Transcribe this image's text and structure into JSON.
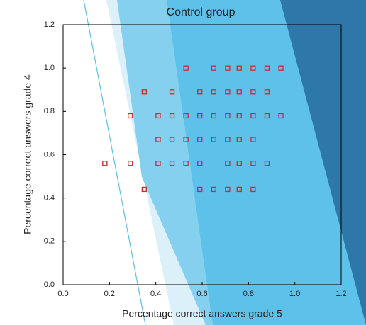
{
  "chart_data": {
    "type": "scatter",
    "title": "Control group",
    "x_label": "Percentage correct answers grade 5",
    "y_label": "Percentage correct answers grade 4",
    "xlim": [
      0,
      1.2
    ],
    "ylim": [
      0,
      1.2
    ],
    "xticks": [
      {
        "value": 0,
        "label": "0.0"
      },
      0.2,
      0.4,
      0.6,
      0.8,
      {
        "value": 1,
        "label": "1.0"
      },
      1.2
    ],
    "yticks": [
      {
        "value": 0,
        "label": "0.0"
      },
      0.2,
      0.4,
      0.6,
      0.8,
      {
        "value": 1,
        "label": "1.0"
      },
      1.2
    ],
    "color": "#e0202a",
    "x": [
      0.53,
      0.65,
      0.71,
      0.76,
      0.82,
      0.88,
      0.94,
      0.35,
      0.47,
      0.59,
      0.65,
      0.71,
      0.76,
      0.82,
      0.88,
      0.29,
      0.41,
      0.47,
      0.53,
      0.59,
      0.65,
      0.71,
      0.76,
      0.82,
      0.88,
      0.94,
      0.41,
      0.47,
      0.53,
      0.59,
      0.65,
      0.71,
      0.76,
      0.82,
      0.18,
      0.29,
      0.41,
      0.47,
      0.53,
      0.59,
      0.71,
      0.76,
      0.82,
      0.88,
      0.35,
      0.59,
      0.65,
      0.71,
      0.76,
      0.82
    ],
    "values": [
      1.0,
      1.0,
      1.0,
      1.0,
      1.0,
      1.0,
      1.0,
      0.89,
      0.89,
      0.89,
      0.89,
      0.89,
      0.89,
      0.89,
      0.89,
      0.78,
      0.78,
      0.78,
      0.78,
      0.78,
      0.78,
      0.78,
      0.78,
      0.78,
      0.78,
      0.78,
      0.67,
      0.67,
      0.67,
      0.67,
      0.67,
      0.67,
      0.67,
      0.67,
      0.56,
      0.56,
      0.56,
      0.56,
      0.56,
      0.56,
      0.56,
      0.56,
      0.56,
      0.56,
      0.44,
      0.44,
      0.44,
      0.44,
      0.44,
      0.44
    ]
  }
}
